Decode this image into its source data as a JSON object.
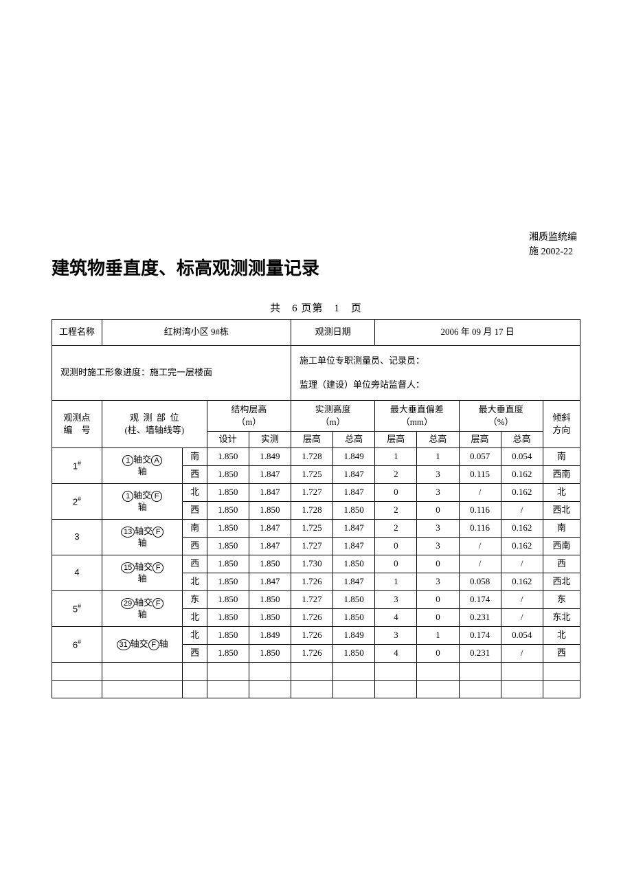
{
  "doc_code": {
    "line1": "湘质监统编",
    "line2": "施 2002-22"
  },
  "title": "建筑物垂直度、标高观测测量记录",
  "pager": {
    "total": "6",
    "current": "1",
    "template_prefix": "共 ",
    "mid": " 页第 ",
    "suffix": " 页"
  },
  "header": {
    "project_label": "工程名称",
    "project_value": "红树湾小区 9#栋",
    "date_label": "观测日期",
    "date_value": "2006 年 09 月 17 日"
  },
  "info": {
    "progress_label": "观测时施工形象进度：",
    "progress_value": "施工完一层楼面",
    "surveyor_label": "施工单位专职测量员、记录员：",
    "supervisor_label": "监理（建设）单位旁站监督人："
  },
  "col_headers": {
    "point_no": "观测点\n编 号",
    "position": "观 测 部 位\n(柱、墙轴线等)",
    "struct_h": "结构层高\n（m）",
    "meas_h": "实测高度\n（m）",
    "max_dev": "最大垂直偏差\n（mm）",
    "max_vert": "最大垂直度\n（%）",
    "tilt": "倾斜\n方向",
    "sub": {
      "design": "设计",
      "actual": "实测",
      "floor": "层高",
      "total": "总高"
    }
  },
  "points": [
    {
      "no": "1",
      "sup": "#",
      "pos_circ": "1",
      "pos_text1": "轴交",
      "pos_circ2": "A",
      "pos_text2": "轴",
      "rows": [
        {
          "dir": "南",
          "d": "1.850",
          "a": "1.849",
          "fh": "1.728",
          "th": "1.849",
          "df": "1",
          "dt": "1",
          "vf": "0.057",
          "vt": "0.054",
          "tilt": "南"
        },
        {
          "dir": "西",
          "d": "1.850",
          "a": "1.847",
          "fh": "1.725",
          "th": "1.847",
          "df": "2",
          "dt": "3",
          "vf": "0.115",
          "vt": "0.162",
          "tilt": "西南"
        }
      ]
    },
    {
      "no": "2",
      "sup": "#",
      "pos_circ": "1",
      "pos_text1": "轴交",
      "pos_circ2": "F",
      "pos_text2": "轴",
      "rows": [
        {
          "dir": "北",
          "d": "1.850",
          "a": "1.847",
          "fh": "1.727",
          "th": "1.847",
          "df": "0",
          "dt": "3",
          "vf": "/",
          "vt": "0.162",
          "tilt": "北"
        },
        {
          "dir": "西",
          "d": "1.850",
          "a": "1.850",
          "fh": "1.728",
          "th": "1.850",
          "df": "2",
          "dt": "0",
          "vf": "0.116",
          "vt": "/",
          "tilt": "西北"
        }
      ]
    },
    {
      "no": "3",
      "sup": "",
      "pos_circ": "13",
      "pos_text1": "轴交",
      "pos_circ2": "F",
      "pos_text2": "轴",
      "rows": [
        {
          "dir": "南",
          "d": "1.850",
          "a": "1.847",
          "fh": "1.725",
          "th": "1.847",
          "df": "2",
          "dt": "3",
          "vf": "0.116",
          "vt": "0.162",
          "tilt": "南"
        },
        {
          "dir": "西",
          "d": "1.850",
          "a": "1.847",
          "fh": "1.727",
          "th": "1.847",
          "df": "0",
          "dt": "3",
          "vf": "/",
          "vt": "0.162",
          "tilt": "西南"
        }
      ]
    },
    {
      "no": "4",
      "sup": "",
      "pos_circ": "15",
      "pos_text1": "轴交",
      "pos_circ2": "F",
      "pos_text2": "轴",
      "rows": [
        {
          "dir": "西",
          "d": "1.850",
          "a": "1.850",
          "fh": "1.730",
          "th": "1.850",
          "df": "0",
          "dt": "0",
          "vf": "/",
          "vt": "/",
          "tilt": "西"
        },
        {
          "dir": "北",
          "d": "1.850",
          "a": "1.847",
          "fh": "1.726",
          "th": "1.847",
          "df": "1",
          "dt": "3",
          "vf": "0.058",
          "vt": "0.162",
          "tilt": "西北"
        }
      ]
    },
    {
      "no": "5",
      "sup": "#",
      "pos_circ": "29",
      "pos_text1": "轴交",
      "pos_circ2": "F",
      "pos_text2": "轴",
      "rows": [
        {
          "dir": "东",
          "d": "1.850",
          "a": "1.850",
          "fh": "1.727",
          "th": "1.850",
          "df": "3",
          "dt": "0",
          "vf": "0.174",
          "vt": "/",
          "tilt": "东"
        },
        {
          "dir": "北",
          "d": "1.850",
          "a": "1.850",
          "fh": "1.726",
          "th": "1.850",
          "df": "4",
          "dt": "0",
          "vf": "0.231",
          "vt": "/",
          "tilt": "东北"
        }
      ]
    },
    {
      "no": "6",
      "sup": "#",
      "pos_circ": "31",
      "pos_text1": "轴交",
      "pos_circ2": "F",
      "pos_text2": "轴",
      "single_line_pos": true,
      "rows": [
        {
          "dir": "北",
          "d": "1.850",
          "a": "1.849",
          "fh": "1.726",
          "th": "1.849",
          "df": "3",
          "dt": "1",
          "vf": "0.174",
          "vt": "0.054",
          "tilt": "北"
        },
        {
          "dir": "西",
          "d": "1.850",
          "a": "1.850",
          "fh": "1.726",
          "th": "1.850",
          "df": "4",
          "dt": "0",
          "vf": "0.231",
          "vt": "/",
          "tilt": "西"
        }
      ]
    }
  ],
  "empty_rows": 2,
  "styles": {
    "background": "#ffffff",
    "text_color": "#000000",
    "border_color": "#000000",
    "title_fontsize": 26,
    "body_fontsize": 13
  }
}
